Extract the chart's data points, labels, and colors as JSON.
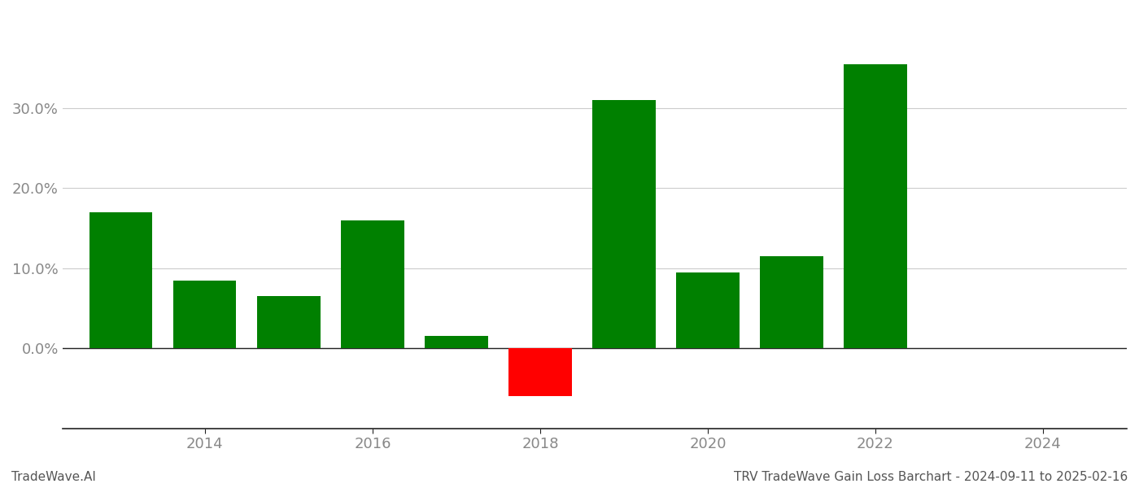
{
  "years": [
    2013,
    2014,
    2015,
    2016,
    2017,
    2018,
    2019,
    2020,
    2021,
    2022
  ],
  "values": [
    0.17,
    0.085,
    0.065,
    0.16,
    0.015,
    -0.06,
    0.31,
    0.095,
    0.115,
    0.355
  ],
  "colors": [
    "#008000",
    "#008000",
    "#008000",
    "#008000",
    "#008000",
    "#ff0000",
    "#008000",
    "#008000",
    "#008000",
    "#008000"
  ],
  "title": "TRV TradeWave Gain Loss Barchart - 2024-09-11 to 2025-02-16",
  "watermark": "TradeWave.AI",
  "xlim": [
    2012.3,
    2025.0
  ],
  "ylim": [
    -0.1,
    0.42
  ],
  "xtick_positions": [
    2014,
    2016,
    2018,
    2020,
    2022,
    2024
  ],
  "ytick_positions": [
    0.0,
    0.1,
    0.2,
    0.3
  ],
  "ytick_labels": [
    "0.0%",
    "10.0%",
    "20.0%",
    "30.0%"
  ],
  "bar_width": 0.75,
  "background_color": "#ffffff",
  "grid_color": "#cccccc",
  "axis_color": "#222222",
  "tick_color": "#888888",
  "title_fontsize": 11,
  "watermark_fontsize": 11,
  "tick_fontsize": 13
}
